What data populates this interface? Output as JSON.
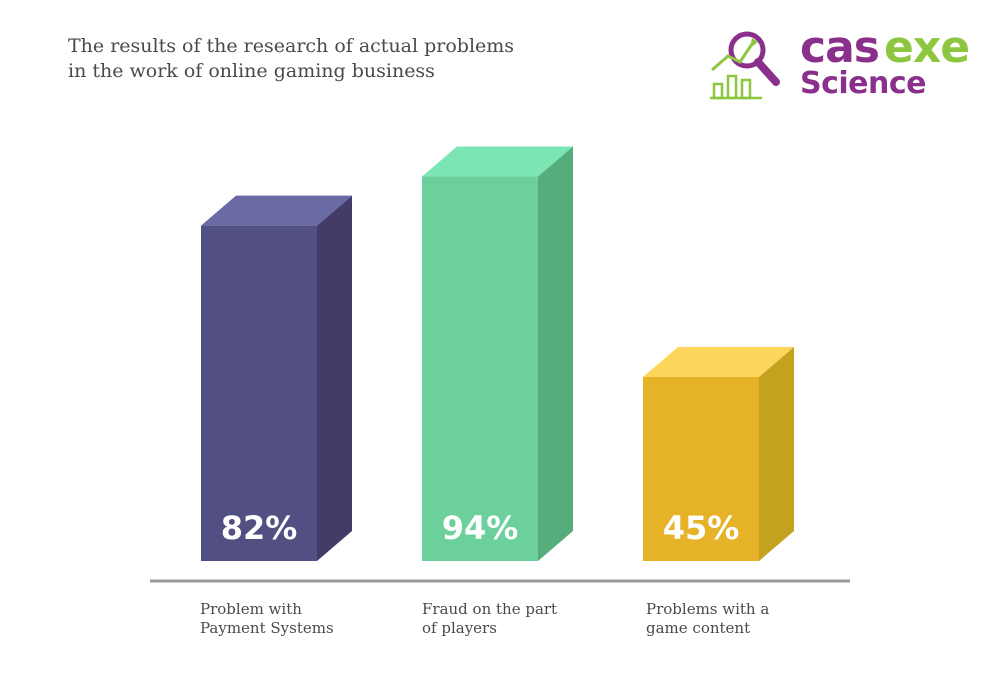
{
  "title_lines": [
    "The results of the research of actual problems",
    "in the work of online gaming business"
  ],
  "logo": {
    "word_cas": "cas",
    "word_exe": "exe",
    "word_science": "Science",
    "colors": {
      "purple": "#8a2f8c",
      "green": "#8dc63f"
    },
    "icon": "magnifier-chart-icon"
  },
  "chart_data": {
    "type": "bar",
    "style": "3d",
    "categories": [
      [
        "Problem with",
        "Payment Systems"
      ],
      [
        "Fraud on the part",
        "of players"
      ],
      [
        "Problems with a",
        "game content"
      ]
    ],
    "values": [
      82,
      94,
      45
    ],
    "value_labels": [
      "82%",
      "94%",
      "45%"
    ],
    "ylim": [
      0,
      100
    ],
    "grid": false,
    "legend": "none",
    "colors": [
      {
        "front": "#524f82",
        "top": "#6a6aa5",
        "side": "#433c68"
      },
      {
        "front": "#6bd09c",
        "top": "#7be5b4",
        "side": "#55ad7b"
      },
      {
        "front": "#e6b328",
        "top": "#fdd55a",
        "side": "#c3a21f"
      }
    ],
    "axis_color": "#999999"
  }
}
